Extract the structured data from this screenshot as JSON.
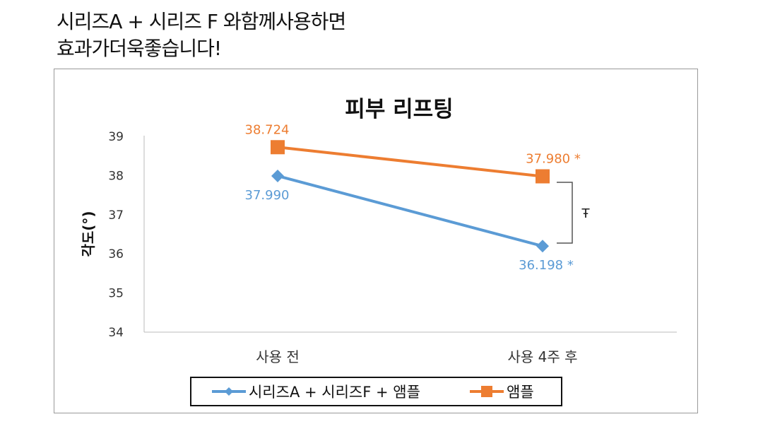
{
  "headline": {
    "line1": "시리즈A + 시리즈 F 와함께사용하면",
    "line2": "효과가더욱좋습니다!"
  },
  "chart_data": {
    "type": "line",
    "title": "피부 리프팅",
    "xlabel": "",
    "ylabel": "각도(°)",
    "categories": [
      "사용 전",
      "사용 4주 후"
    ],
    "ylim": [
      34,
      39
    ],
    "yticks": [
      "34",
      "35",
      "36",
      "37",
      "38",
      "39"
    ],
    "grid": false,
    "legend_position": "bottom",
    "series": [
      {
        "name": "시리즈A + 시리즈F + 앰플",
        "values": [
          37.99,
          36.198
        ],
        "labels": [
          "37.990",
          "36.198 *"
        ],
        "color": "#5b9bd5",
        "marker": "diamond"
      },
      {
        "name": "앰플",
        "values": [
          38.724,
          37.98
        ],
        "labels": [
          "38.724",
          "37.980 *"
        ],
        "color": "#ed7d31",
        "marker": "square"
      }
    ],
    "annotation": "Ŧ"
  }
}
